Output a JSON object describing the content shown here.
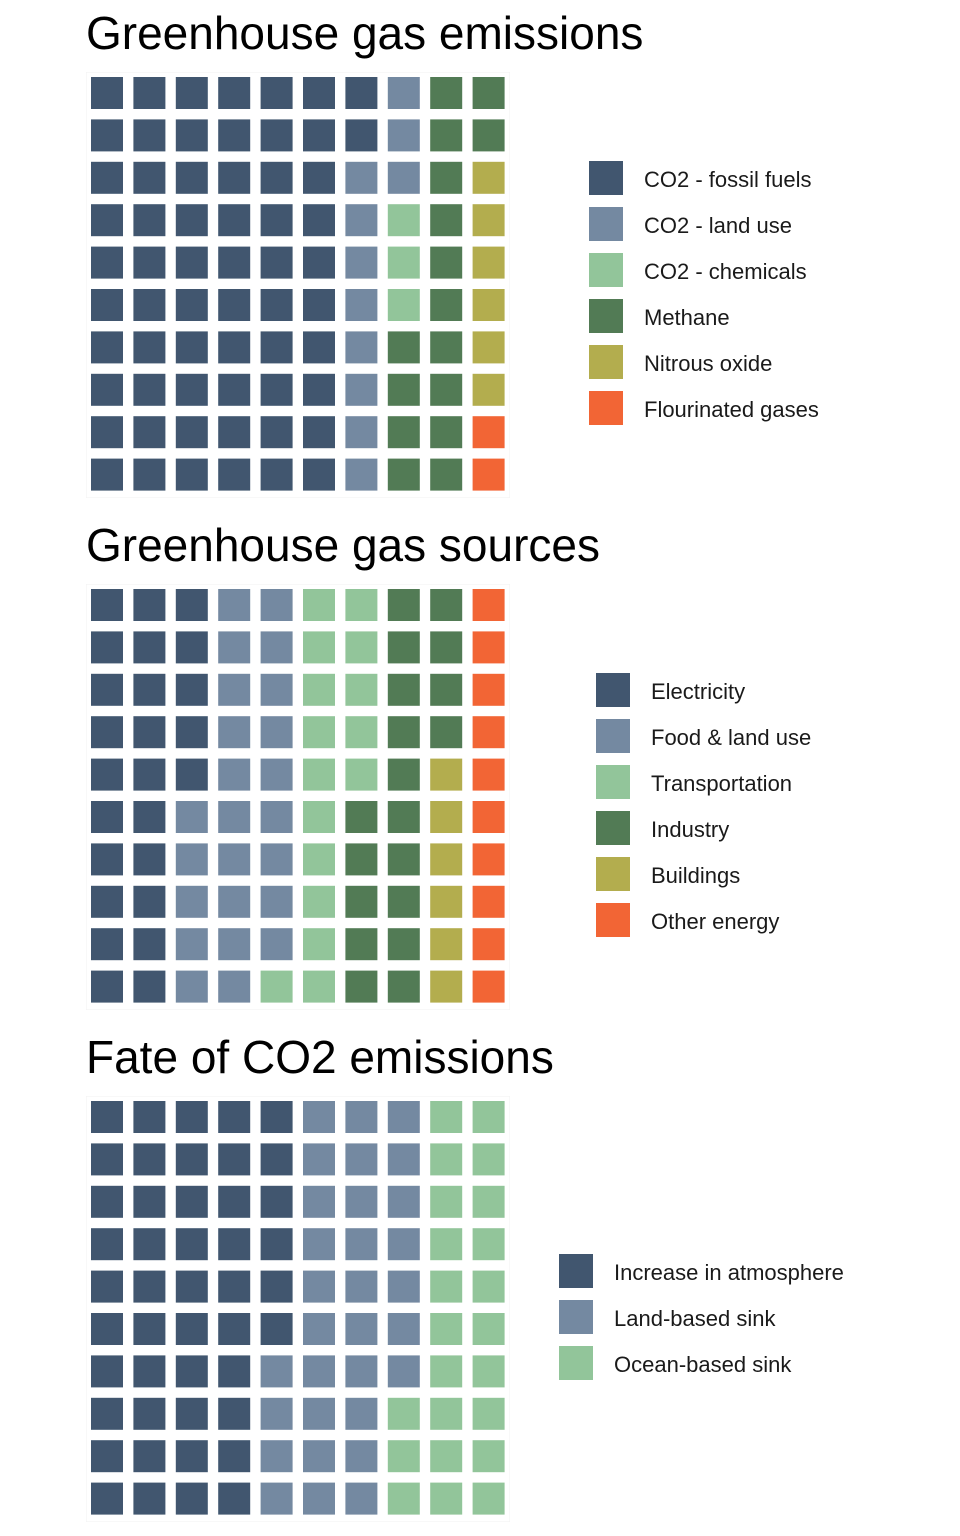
{
  "chart_data": [
    {
      "type": "waffle",
      "title": "Greenhouse gas emissions",
      "grid": {
        "rows": 10,
        "cols": 10,
        "fill_order": "column-major, top-to-bottom, left-to-right"
      },
      "categories": [
        "CO2 - fossil fuels",
        "CO2 - land use",
        "CO2 - chemicals",
        "Methane",
        "Nitrous oxide",
        "Flourinated gases"
      ],
      "values": [
        62,
        11,
        3,
        16,
        6,
        2
      ],
      "colors": [
        "#41566f",
        "#7489a1",
        "#92c59a",
        "#527b55",
        "#b3ad4e",
        "#f26535"
      ],
      "legend_position": "right"
    },
    {
      "type": "waffle",
      "title": "Greenhouse gas sources",
      "grid": {
        "rows": 10,
        "cols": 10,
        "fill_order": "column-major, top-to-bottom, left-to-right"
      },
      "categories": [
        "Electricity",
        "Food & land use",
        "Transportation",
        "Industry",
        "Buildings",
        "Other energy"
      ],
      "values": [
        25,
        24,
        16,
        19,
        6,
        10
      ],
      "colors": [
        "#41566f",
        "#7489a1",
        "#92c59a",
        "#527b55",
        "#b3ad4e",
        "#f26535"
      ],
      "legend_position": "right"
    },
    {
      "type": "waffle",
      "title": "Fate of CO2 emissions",
      "grid": {
        "rows": 10,
        "cols": 10,
        "fill_order": "column-major, top-to-bottom, left-to-right"
      },
      "categories": [
        "Increase in atmosphere",
        "Land-based sink",
        "Ocean-based sink"
      ],
      "values": [
        46,
        31,
        23
      ],
      "colors": [
        "#41566f",
        "#7489a1",
        "#92c59a"
      ],
      "legend_position": "right"
    }
  ]
}
